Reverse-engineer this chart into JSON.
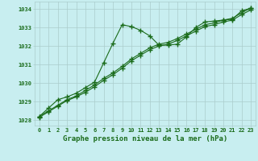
{
  "title": "Graphe pression niveau de la mer (hPa)",
  "xlabel_hours": [
    0,
    1,
    2,
    3,
    4,
    5,
    6,
    7,
    8,
    9,
    10,
    11,
    12,
    13,
    14,
    15,
    16,
    17,
    18,
    19,
    20,
    21,
    22,
    23
  ],
  "series1": {
    "x": [
      0,
      1,
      2,
      3,
      4,
      5,
      6,
      7,
      8,
      9,
      10,
      11,
      12,
      13,
      14,
      15,
      16,
      17,
      18,
      19,
      20,
      21,
      22,
      23
    ],
    "y": [
      1028.2,
      1028.65,
      1029.1,
      1029.25,
      1029.45,
      1029.75,
      1030.05,
      1031.1,
      1032.15,
      1033.15,
      1033.05,
      1032.85,
      1032.55,
      1032.05,
      1032.05,
      1032.1,
      1032.5,
      1033.0,
      1033.3,
      1033.35,
      1033.4,
      1033.45,
      1033.9,
      1034.05
    ]
  },
  "series2": {
    "x": [
      0,
      1,
      2,
      3,
      4,
      5,
      6,
      7,
      8,
      9,
      10,
      11,
      12,
      13,
      14,
      15,
      16,
      17,
      18,
      19,
      20,
      21,
      22,
      23
    ],
    "y": [
      1028.2,
      1028.5,
      1028.8,
      1029.1,
      1029.3,
      1029.6,
      1029.9,
      1030.25,
      1030.55,
      1030.9,
      1031.3,
      1031.6,
      1031.9,
      1032.1,
      1032.2,
      1032.4,
      1032.65,
      1032.9,
      1033.15,
      1033.25,
      1033.4,
      1033.5,
      1033.8,
      1034.05
    ]
  },
  "series3": {
    "x": [
      0,
      1,
      2,
      3,
      4,
      5,
      6,
      7,
      8,
      9,
      10,
      11,
      12,
      13,
      14,
      15,
      16,
      17,
      18,
      19,
      20,
      21,
      22,
      23
    ],
    "y": [
      1028.15,
      1028.45,
      1028.75,
      1029.05,
      1029.25,
      1029.5,
      1029.8,
      1030.15,
      1030.45,
      1030.8,
      1031.2,
      1031.5,
      1031.8,
      1032.0,
      1032.1,
      1032.3,
      1032.55,
      1032.8,
      1033.05,
      1033.15,
      1033.3,
      1033.4,
      1033.7,
      1033.95
    ]
  },
  "line_color": "#1a6b1a",
  "bg_color": "#c8eef0",
  "grid_color": "#aacccc",
  "ylim": [
    1027.7,
    1034.4
  ],
  "yticks": [
    1028,
    1029,
    1030,
    1031,
    1032,
    1033,
    1034
  ],
  "marker": "+",
  "marker_size": 4,
  "linewidth": 0.8,
  "title_fontsize": 6.5,
  "tick_fontsize": 5.0,
  "tick_color": "#1a6b1a",
  "marker_edge_width": 1.0
}
